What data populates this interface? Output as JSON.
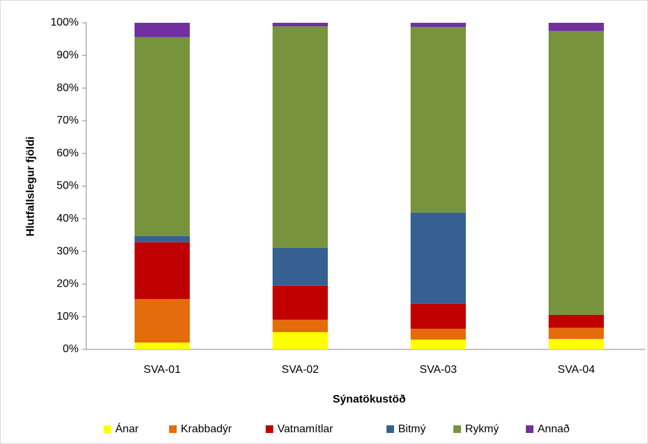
{
  "chart_data": {
    "type": "stacked_bar",
    "categories": [
      "SVA-01",
      "SVA-02",
      "SVA-03",
      "SVA-04"
    ],
    "series": [
      {
        "name": "Ánar",
        "color": "#ffff00",
        "values": [
          2.1,
          5.3,
          3.0,
          3.2
        ]
      },
      {
        "name": "Krabbadýr",
        "color": "#e46c0a",
        "values": [
          13.3,
          3.8,
          3.3,
          3.4
        ]
      },
      {
        "name": "Vatnamítlar",
        "color": "#c00000",
        "values": [
          17.4,
          10.4,
          7.7,
          4.0
        ]
      },
      {
        "name": "Bitmý",
        "color": "#376092",
        "values": [
          1.9,
          11.6,
          27.9,
          0
        ]
      },
      {
        "name": "Rykmý",
        "color": "#77933c",
        "values": [
          60.9,
          67.8,
          56.8,
          86.9
        ]
      },
      {
        "name": "Annað",
        "color": "#7030a0",
        "values": [
          4.4,
          1.1,
          1.3,
          2.5
        ]
      }
    ],
    "ylabel": "Hlutfallslegur fjöldi",
    "xlabel": "Sýnatökustöð",
    "ylim": [
      0,
      100
    ],
    "yticks": [
      {
        "value": 0,
        "label": "0%"
      },
      {
        "value": 10,
        "label": "10%"
      },
      {
        "value": 20,
        "label": "20%"
      },
      {
        "value": 30,
        "label": "30%"
      },
      {
        "value": 40,
        "label": "40%"
      },
      {
        "value": 50,
        "label": "50%"
      },
      {
        "value": 60,
        "label": "60%"
      },
      {
        "value": 70,
        "label": "70%"
      },
      {
        "value": 80,
        "label": "80%"
      },
      {
        "value": 90,
        "label": "90%"
      },
      {
        "value": 100,
        "label": "100%"
      }
    ],
    "grid": false,
    "legend": "bottom"
  }
}
